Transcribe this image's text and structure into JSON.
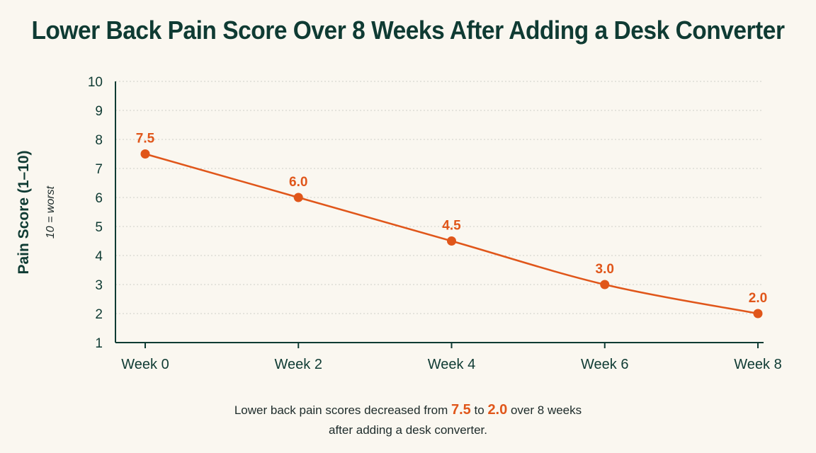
{
  "title": "Lower Back Pain Score Over 8 Weeks After Adding a Desk Converter",
  "colors": {
    "accent": "#e0561a",
    "axis": "#0f3b33",
    "grid": "#cfcfc8",
    "background": "#faf7f0"
  },
  "chart_data": {
    "type": "line",
    "title": "Lower Back Pain Score Over 8 Weeks After Adding a Desk Converter",
    "xlabel": "",
    "ylabel": "Pain Score (1–10)",
    "ylabel_note": "10 = worst",
    "categories": [
      "Week 0",
      "Week 2",
      "Week 4",
      "Week 6",
      "Week 8"
    ],
    "x": [
      0,
      2,
      4,
      6,
      8
    ],
    "series": [
      {
        "values": [
          7.5,
          6.0,
          4.5,
          3.0,
          2.0
        ]
      }
    ],
    "data_labels": [
      "7.5",
      "6.0",
      "4.5",
      "3.0",
      "2.0"
    ],
    "yticks": [
      "1",
      "2",
      "3",
      "4",
      "5",
      "6",
      "7",
      "8",
      "9",
      "10"
    ],
    "ylim": [
      1,
      10
    ],
    "grid": true,
    "legend": "none"
  },
  "caption": {
    "pre": "Lower back pain scores decreased from ",
    "from": "7.5",
    "mid": " to ",
    "to": "2.0",
    "post": " over 8 weeks",
    "line2": "after adding a desk converter."
  }
}
